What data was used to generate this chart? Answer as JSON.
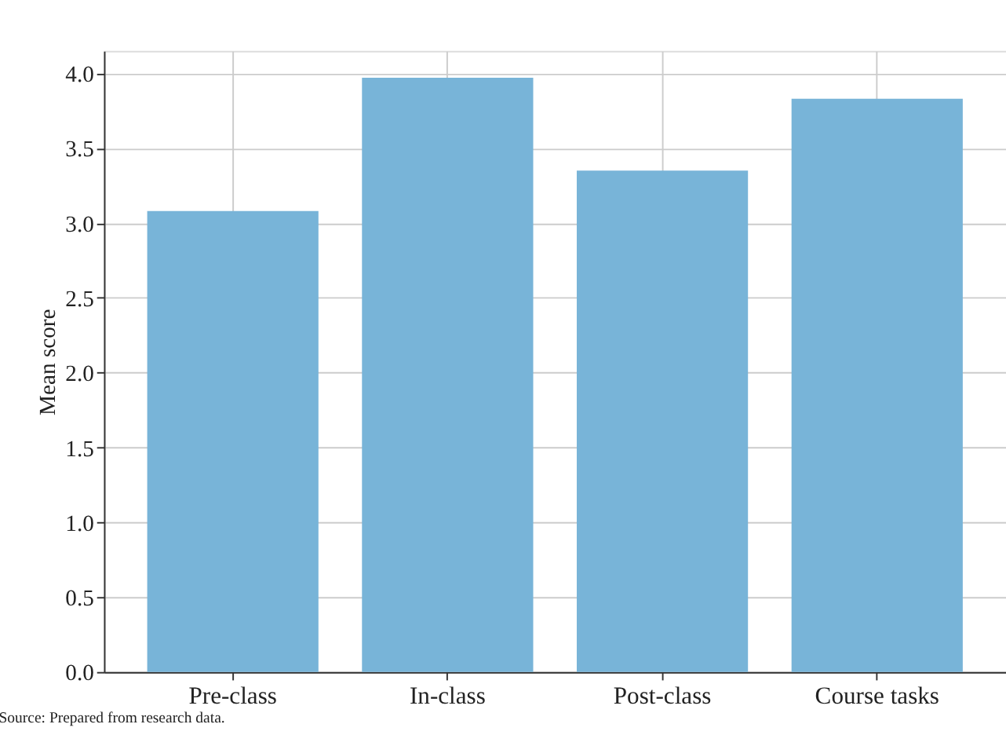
{
  "chart_data": {
    "type": "bar",
    "ylabel": "Mean score",
    "categories": [
      "Pre-class",
      "In-class",
      "Post-class",
      "Course tasks"
    ],
    "values": [
      3.08,
      3.97,
      3.35,
      3.83
    ],
    "color": "#78b4d8",
    "ylim": [
      0,
      4.15
    ],
    "yticks": [
      {
        "value": 0,
        "label": "0.0"
      },
      0.5,
      {
        "value": 1,
        "label": "1.0"
      },
      1.5,
      {
        "value": 2,
        "label": "2.0"
      },
      2.5,
      {
        "value": 3,
        "label": "3.0"
      },
      3.5,
      {
        "value": 4,
        "label": "4.0"
      }
    ],
    "grid": true,
    "annotations": [
      "Source: Prepared from research data."
    ]
  }
}
